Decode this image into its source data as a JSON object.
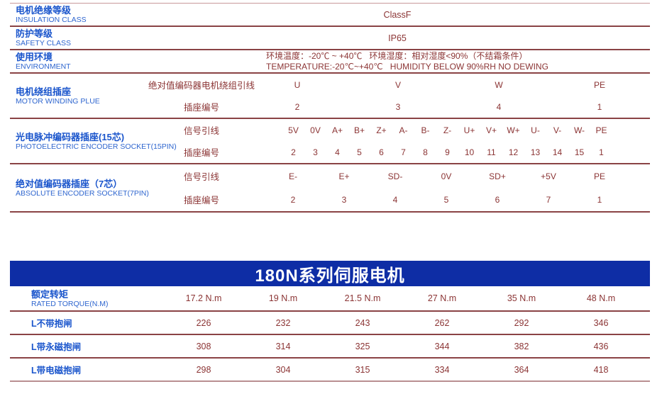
{
  "colors": {
    "label_blue": "#1a55cc",
    "label_blue_light": "#2f66cf",
    "value_maroon": "#8b3434",
    "line": "#8a4345",
    "line_light": "#c9999b",
    "line_bottom": "#b98f91",
    "banner_bg": "#0e2da5",
    "banner_text": "#ffffff"
  },
  "spec_table": {
    "rows": [
      {
        "zh": "电机绝缘等级",
        "en": "INSULATION CLASS",
        "value": "ClassF"
      },
      {
        "zh": "防护等级",
        "en": "SAFETY CLASS",
        "value": "IP65"
      },
      {
        "zh": "使用环境",
        "en": "ENVIRONMENT",
        "value_zh": "环境温度：-20℃ ~ +40℃   环境湿度：相对湿度<90%（不结霜条件）",
        "value_en": "TEMPERATURE:-20℃~+40℃   HUMIDITY BELOW 90%RH NO DEWING"
      }
    ]
  },
  "winding": {
    "zh": "电机绕组插座",
    "en": "MOTOR WINDING PLUE",
    "row1_label": "绝对值编码器电机绕组引线",
    "row2_label": "插座编号",
    "pins": [
      "U",
      "V",
      "W",
      "PE"
    ],
    "numbers": [
      "2",
      "3",
      "4",
      "1"
    ]
  },
  "encoder15": {
    "zh": "光电脉冲编码器插座(15芯)",
    "en": "PHOTOELECTRIC ENCODER SOCKET(15PIN)",
    "row1_label": "信号引线",
    "row2_label": "插座编号",
    "pins": [
      "5V",
      "0V",
      "A+",
      "B+",
      "Z+",
      "A-",
      "B-",
      "Z-",
      "U+",
      "V+",
      "W+",
      "U-",
      "V-",
      "W-",
      "PE"
    ],
    "numbers": [
      "2",
      "3",
      "4",
      "5",
      "6",
      "7",
      "8",
      "9",
      "10",
      "11",
      "12",
      "13",
      "14",
      "15",
      "1"
    ]
  },
  "encoder7": {
    "zh": "绝对值编码器插座（7芯）",
    "en": "ABSOLUTE ENCODER SOCKET(7PIN)",
    "row1_label": "信号引线",
    "row2_label": "插座编号",
    "pins": [
      "E-",
      "E+",
      "SD-",
      "0V",
      "SD+",
      "+5V",
      "PE"
    ],
    "numbers": [
      "2",
      "3",
      "4",
      "5",
      "6",
      "7",
      "1"
    ]
  },
  "series_banner": "180N系列伺服电机",
  "torque_table": {
    "header": {
      "zh": "额定转矩",
      "en": "RATED TORQUE(N.M)"
    },
    "torques": [
      "17.2 N.m",
      "19 N.m",
      "21.5 N.m",
      "27 N.m",
      "35 N.m",
      "48 N.m"
    ],
    "rows": [
      {
        "label": "L不带抱闸",
        "values": [
          "226",
          "232",
          "243",
          "262",
          "292",
          "346"
        ]
      },
      {
        "label": "L带永磁抱闸",
        "values": [
          "308",
          "314",
          "325",
          "344",
          "382",
          "436"
        ]
      },
      {
        "label": "L带电磁抱闸",
        "values": [
          "298",
          "304",
          "315",
          "334",
          "364",
          "418"
        ]
      }
    ]
  }
}
